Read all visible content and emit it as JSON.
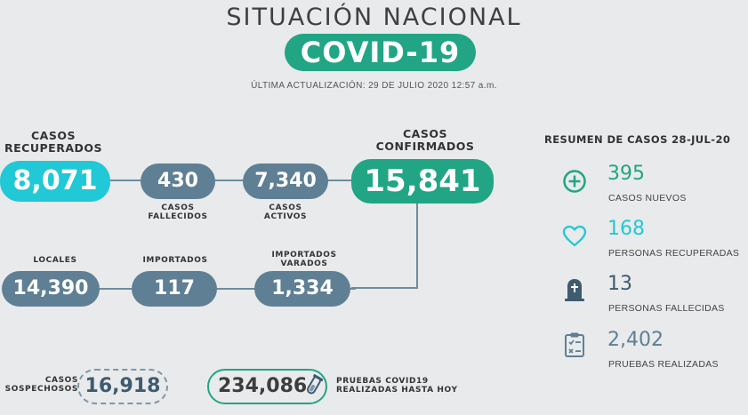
{
  "header": {
    "title": "SITUACIÓN NACIONAL",
    "badge": "COVID-19",
    "updated": "ÚLTIMA ACTUALIZACIÓN: 29 DE JULIO 2020 12:57 a.m."
  },
  "flow": {
    "recuperados": {
      "label": "CASOS RECUPERADOS",
      "value": "8,071"
    },
    "fallecidos": {
      "label": "CASOS FALLECIDOS",
      "value": "430"
    },
    "activos": {
      "label": "CASOS ACTIVOS",
      "value": "7,340"
    },
    "confirmados": {
      "label": "CASOS CONFIRMADOS",
      "value": "15,841"
    },
    "locales": {
      "label": "LOCALES",
      "value": "14,390"
    },
    "importados": {
      "label": "IMPORTADOS",
      "value": "117"
    },
    "varados": {
      "label": "IMPORTADOS VARADOS",
      "value": "1,334"
    }
  },
  "bottom": {
    "sospechosos_label_1": "CASOS",
    "sospechosos_label_2": "SOSPECHOSOS",
    "sospechosos_value": "16,918",
    "pruebas_value": "234,086",
    "pruebas_label_1": "PRUEBAS COVID19",
    "pruebas_label_2": "REALIZADAS HASTA HOY"
  },
  "summary": {
    "title": "RESUMEN DE CASOS 28-JUL-20",
    "items": [
      {
        "icon": "plus-circle-icon",
        "value": "395",
        "label": "CASOS NUEVOS",
        "color": "#21a584"
      },
      {
        "icon": "heart-icon",
        "value": "168",
        "label": "PERSONAS RECUPERADAS",
        "color": "#21c8d6"
      },
      {
        "icon": "tombstone-icon",
        "value": "13",
        "label": "PERSONAS FALLECIDAS",
        "color": "#3e5b70"
      },
      {
        "icon": "clipboard-icon",
        "value": "2,402",
        "label": "PRUEBAS REALIZADAS",
        "color": "#5f7f95"
      }
    ]
  },
  "colors": {
    "green": "#21a584",
    "cyan": "#21c8d6",
    "slate": "#5f7f95",
    "background": "#e9eaeb"
  }
}
